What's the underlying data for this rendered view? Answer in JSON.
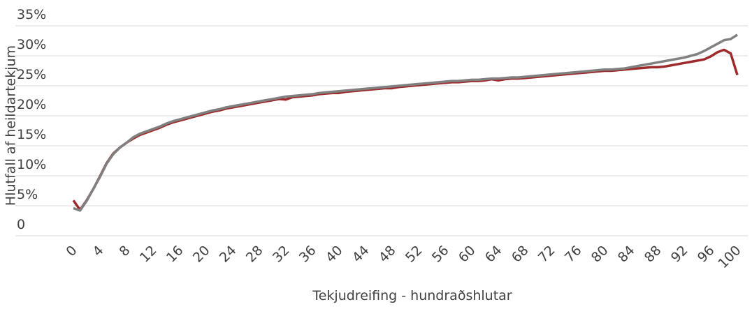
{
  "chart_data": {
    "type": "line",
    "y_label": "Hlutfall af heildartekjum",
    "x_label": "Tekjudreifing - hundraðshlutar",
    "x": [
      0,
      1,
      2,
      3,
      4,
      5,
      6,
      7,
      8,
      9,
      10,
      11,
      12,
      13,
      14,
      15,
      16,
      17,
      18,
      19,
      20,
      21,
      22,
      23,
      24,
      25,
      26,
      27,
      28,
      29,
      30,
      31,
      32,
      33,
      34,
      35,
      36,
      37,
      38,
      39,
      40,
      41,
      42,
      43,
      44,
      45,
      46,
      47,
      48,
      49,
      50,
      51,
      52,
      53,
      54,
      55,
      56,
      57,
      58,
      59,
      60,
      61,
      62,
      63,
      64,
      65,
      66,
      67,
      68,
      69,
      70,
      71,
      72,
      73,
      74,
      75,
      76,
      77,
      78,
      79,
      80,
      81,
      82,
      83,
      84,
      85,
      86,
      87,
      88,
      89,
      90,
      91,
      92,
      93,
      94,
      95,
      96,
      97,
      98,
      99,
      100
    ],
    "series": [
      {
        "color": "#9e2a2b",
        "values": [
          5.9,
          4.3,
          5.9,
          7.8,
          9.9,
          12.1,
          13.7,
          14.7,
          15.5,
          16.2,
          16.8,
          17.2,
          17.6,
          18,
          18.5,
          18.9,
          19.2,
          19.5,
          19.8,
          20.1,
          20.4,
          20.7,
          20.9,
          21.2,
          21.4,
          21.6,
          21.8,
          22,
          22.2,
          22.4,
          22.6,
          22.8,
          22.7,
          23.1,
          23.2,
          23.3,
          23.4,
          23.6,
          23.7,
          23.8,
          23.8,
          24,
          24.1,
          24.2,
          24.3,
          24.4,
          24.5,
          24.6,
          24.6,
          24.8,
          24.9,
          25,
          25.1,
          25.2,
          25.3,
          25.4,
          25.5,
          25.6,
          25.6,
          25.7,
          25.8,
          25.8,
          25.9,
          26.1,
          25.9,
          26.1,
          26.2,
          26.2,
          26.3,
          26.4,
          26.5,
          26.6,
          26.7,
          26.8,
          26.9,
          27,
          27.1,
          27.2,
          27.3,
          27.4,
          27.5,
          27.5,
          27.6,
          27.7,
          27.8,
          27.9,
          28,
          28.1,
          28.1,
          28.2,
          28.4,
          28.6,
          28.8,
          29,
          29.2,
          29.4,
          29.9,
          30.6,
          31,
          30.4,
          26.8
        ]
      },
      {
        "color": "#808080",
        "values": [
          4.6,
          4.2,
          5.8,
          7.8,
          9.8,
          12,
          13.6,
          14.7,
          15.5,
          16.4,
          17,
          17.4,
          17.8,
          18.2,
          18.7,
          19.1,
          19.4,
          19.7,
          20,
          20.3,
          20.6,
          20.9,
          21.1,
          21.4,
          21.6,
          21.8,
          22,
          22.2,
          22.4,
          22.6,
          22.8,
          23,
          23.2,
          23.3,
          23.4,
          23.5,
          23.6,
          23.8,
          23.9,
          24,
          24.1,
          24.2,
          24.3,
          24.4,
          24.5,
          24.6,
          24.7,
          24.8,
          24.9,
          25,
          25.1,
          25.2,
          25.3,
          25.4,
          25.5,
          25.6,
          25.7,
          25.8,
          25.8,
          25.9,
          26,
          26,
          26.1,
          26.2,
          26.2,
          26.3,
          26.4,
          26.4,
          26.5,
          26.6,
          26.7,
          26.8,
          26.9,
          27,
          27.1,
          27.2,
          27.3,
          27.4,
          27.5,
          27.6,
          27.7,
          27.7,
          27.8,
          27.9,
          28.1,
          28.3,
          28.5,
          28.7,
          28.9,
          29.1,
          29.3,
          29.5,
          29.7,
          30,
          30.3,
          30.8,
          31.4,
          32,
          32.6,
          32.8,
          33.5
        ]
      }
    ],
    "xlim": [
      0,
      100
    ],
    "xticks": [
      0,
      4,
      8,
      12,
      16,
      20,
      24,
      28,
      32,
      36,
      40,
      44,
      48,
      52,
      56,
      60,
      64,
      68,
      72,
      76,
      80,
      84,
      88,
      92,
      96,
      100
    ],
    "ylim": [
      0,
      35
    ],
    "yticks": [
      0,
      {
        "value": 5,
        "label": "5%"
      },
      {
        "value": 10,
        "label": "10%"
      },
      {
        "value": 15,
        "label": "15%"
      },
      {
        "value": 20,
        "label": "20%"
      },
      {
        "value": 25,
        "label": "25%"
      },
      {
        "value": 30,
        "label": "30%"
      },
      {
        "value": 35,
        "label": "35%"
      }
    ],
    "grid": true
  }
}
